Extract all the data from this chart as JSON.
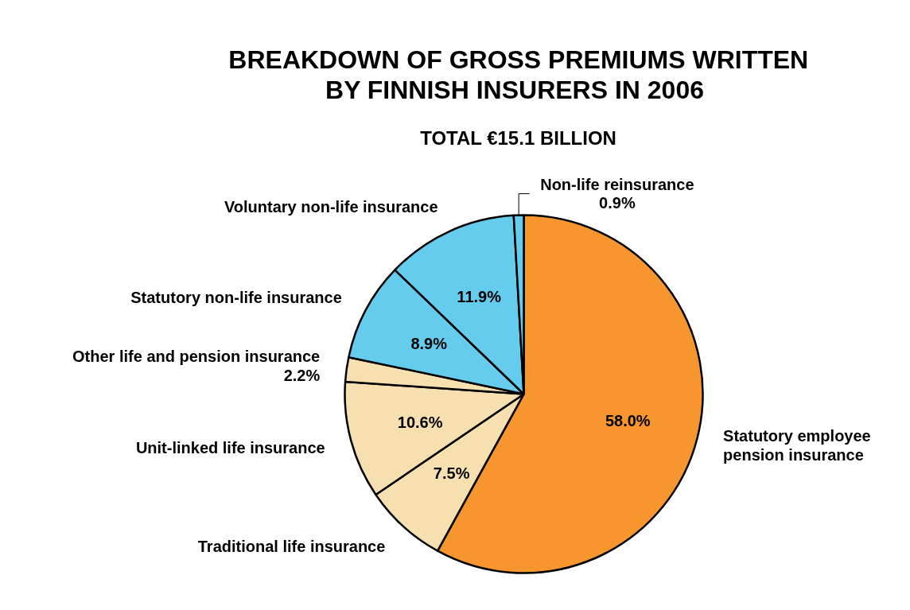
{
  "chart_data": {
    "type": "pie",
    "title": "BREAKDOWN OF GROSS PREMIUMS WRITTEN\nBY FINNISH INSURERS IN  2006",
    "subtitle": "TOTAL €15.1 BILLION",
    "categories": [
      "Statutory employee\npension insurance",
      "Traditional life insurance",
      "Unit-linked life insurance",
      "Other life and pension insurance",
      "Statutory non-life insurance",
      "Voluntary non-life insurance",
      "Non-life reinsurance"
    ],
    "values": [
      58.0,
      7.5,
      10.6,
      2.2,
      8.9,
      11.9,
      0.9
    ],
    "colors": [
      "#f7962f",
      "#f7e0b0",
      "#f7e0b0",
      "#f7e0b0",
      "#66ccee",
      "#66ccee",
      "#66ccee"
    ],
    "value_labels": [
      "58.0%",
      "7.5%",
      "10.6%",
      "2.2%",
      "8.9%",
      "11.9%",
      "0.9%"
    ]
  }
}
